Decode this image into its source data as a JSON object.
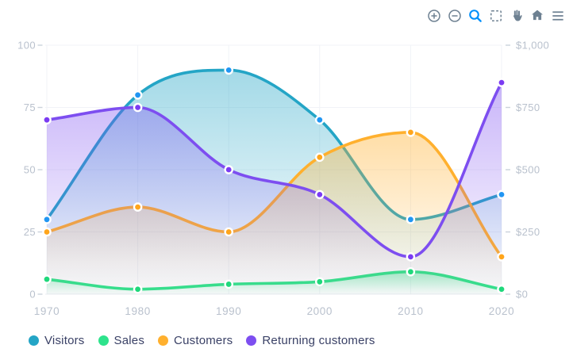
{
  "toolbar": {
    "icons": [
      {
        "name": "zoom-in-icon",
        "active": false
      },
      {
        "name": "zoom-out-icon",
        "active": false
      },
      {
        "name": "zoom-icon",
        "active": true
      },
      {
        "name": "selection-icon",
        "active": false
      },
      {
        "name": "pan-icon",
        "active": false
      },
      {
        "name": "home-icon",
        "active": false
      },
      {
        "name": "menu-icon",
        "active": false
      }
    ],
    "icon_color": "#6E8192",
    "active_color": "#008FFB"
  },
  "chart_data": {
    "type": "area",
    "categories": [
      "1970",
      "1980",
      "1990",
      "2000",
      "2010",
      "2020"
    ],
    "series": [
      {
        "name": "Visitors",
        "values": [
          30,
          80,
          90,
          70,
          30,
          40
        ],
        "color": "#24A5C6",
        "marker_color": "#2196F3"
      },
      {
        "name": "Sales",
        "values": [
          6,
          2,
          4,
          5,
          9,
          2
        ],
        "color": "#2EE38C",
        "marker_color": "#1FD87B"
      },
      {
        "name": "Customers",
        "values": [
          25,
          35,
          25,
          55,
          65,
          15
        ],
        "color": "#FFB02E",
        "marker_color": "#FFA51B"
      },
      {
        "name": "Returning customers",
        "values": [
          70,
          75,
          50,
          40,
          15,
          85
        ],
        "color": "#7D4EF0",
        "marker_color": "#7B3BF2"
      }
    ],
    "yaxis_left": {
      "ticks": [
        "100",
        "75",
        "50",
        "25",
        "0"
      ],
      "min": 0,
      "max": 100
    },
    "yaxis_right": {
      "ticks": [
        "$1,000",
        "$750",
        "$500",
        "$250",
        "$0"
      ],
      "min": 0,
      "max": 1000
    },
    "grid": true,
    "curve": "smooth",
    "legend_position": "bottom-left",
    "colors": {
      "axis_label": "#B9C1CD",
      "legend_text": "#3A4166",
      "gridline": "#F1F3F7",
      "baseline": "#E8EBF0",
      "tick_dash": "#CBD2DB"
    }
  }
}
